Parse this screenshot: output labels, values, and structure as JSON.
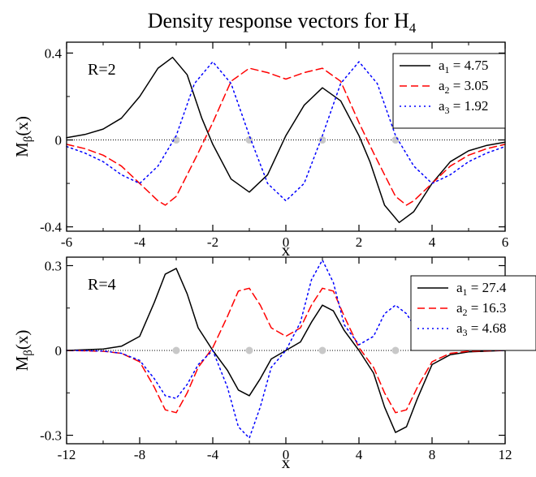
{
  "chart_data": {
    "title": "Density response vectors for H",
    "title_subscript": "4",
    "panels": [
      {
        "type": "line",
        "label": "R=2",
        "xlabel": "x",
        "ylabel": "M_β(x)",
        "ylabel_main": "M",
        "ylabel_sub": "β",
        "ylabel_tail": "(x)",
        "xlim": [
          -6,
          6
        ],
        "ylim": [
          -0.42,
          0.45
        ],
        "xticks": [
          -6,
          -4,
          -2,
          0,
          2,
          4,
          6
        ],
        "xtick_labels": [
          "-6",
          "-4",
          "-2",
          "0",
          "2",
          "4",
          "6"
        ],
        "yticks": [
          -0.4,
          0,
          0.4
        ],
        "ytick_labels": [
          "-0.4",
          "0",
          "0.4"
        ],
        "grid": false,
        "zero_line": true,
        "legend_position": "top-right",
        "atom_positions": [
          -3,
          -1,
          1,
          3
        ],
        "series": [
          {
            "legend_var": "a",
            "legend_sub": "1",
            "legend_value": "4.75",
            "color": "#000000",
            "style": "solid",
            "x": [
              -6,
              -5.5,
              -5,
              -4.5,
              -4,
              -3.5,
              -3.1,
              -2.7,
              -2.3,
              -2,
              -1.5,
              -1,
              -0.5,
              0,
              0.5,
              1,
              1.5,
              2,
              2.3,
              2.7,
              3.1,
              3.5,
              4,
              4.5,
              5,
              5.5,
              6
            ],
            "y": [
              0.01,
              0.025,
              0.05,
              0.1,
              0.2,
              0.33,
              0.38,
              0.3,
              0.1,
              -0.02,
              -0.18,
              -0.24,
              -0.16,
              0.02,
              0.16,
              0.24,
              0.18,
              0.02,
              -0.1,
              -0.3,
              -0.38,
              -0.33,
              -0.2,
              -0.1,
              -0.05,
              -0.025,
              -0.01
            ]
          },
          {
            "legend_var": "a",
            "legend_sub": "2",
            "legend_value": "3.05",
            "color": "#ff0000",
            "style": "dashed",
            "x": [
              -6,
              -5.5,
              -5,
              -4.5,
              -4,
              -3.5,
              -3.3,
              -3,
              -2.7,
              -2.4,
              -2,
              -1.5,
              -1,
              -0.5,
              0,
              0.5,
              1,
              1.5,
              2,
              2.4,
              2.7,
              3,
              3.3,
              3.5,
              4,
              4.5,
              5,
              5.5,
              6
            ],
            "y": [
              -0.02,
              -0.04,
              -0.07,
              -0.12,
              -0.2,
              -0.28,
              -0.3,
              -0.26,
              -0.16,
              -0.06,
              0.08,
              0.27,
              0.33,
              0.31,
              0.28,
              0.31,
              0.33,
              0.27,
              0.08,
              -0.06,
              -0.16,
              -0.26,
              -0.3,
              -0.28,
              -0.2,
              -0.12,
              -0.07,
              -0.04,
              -0.02
            ]
          },
          {
            "legend_var": "a",
            "legend_sub": "3",
            "legend_value": "1.92",
            "color": "#0000ff",
            "style": "dotted",
            "x": [
              -6,
              -5.5,
              -5,
              -4.5,
              -4,
              -3.5,
              -3,
              -2.5,
              -2,
              -1.5,
              -1,
              -0.5,
              0,
              0.5,
              1,
              1.5,
              2,
              2.5,
              3,
              3.5,
              4,
              4.5,
              5,
              5.5,
              6
            ],
            "y": [
              -0.03,
              -0.06,
              -0.1,
              -0.16,
              -0.2,
              -0.12,
              0.02,
              0.26,
              0.36,
              0.26,
              0.02,
              -0.2,
              -0.28,
              -0.2,
              0.02,
              0.26,
              0.36,
              0.26,
              0.02,
              -0.12,
              -0.2,
              -0.16,
              -0.1,
              -0.06,
              -0.03
            ]
          }
        ]
      },
      {
        "type": "line",
        "label": "R=4",
        "xlabel": "x",
        "ylabel": "M_β(x)",
        "ylabel_main": "M",
        "ylabel_sub": "β",
        "ylabel_tail": "(x)",
        "xlim": [
          -12,
          12
        ],
        "ylim": [
          -0.33,
          0.33
        ],
        "xticks": [
          -12,
          -8,
          -4,
          0,
          4,
          8,
          12
        ],
        "xtick_labels": [
          "-12",
          "-8",
          "-4",
          "0",
          "4",
          "8",
          "12"
        ],
        "yticks": [
          -0.3,
          0,
          0.3
        ],
        "ytick_labels": [
          "-0.3",
          "0",
          "0.3"
        ],
        "grid": false,
        "zero_line": true,
        "legend_position": "top-right",
        "atom_positions": [
          -6,
          -2,
          2,
          6
        ],
        "series": [
          {
            "legend_var": "a",
            "legend_sub": "1",
            "legend_value": "27.4",
            "color": "#000000",
            "style": "solid",
            "x": [
              -12,
              -10,
              -9,
              -8,
              -7.2,
              -6.6,
              -6,
              -5.4,
              -4.8,
              -4,
              -3.2,
              -2.6,
              -2,
              -1.4,
              -0.8,
              0,
              0.8,
              1.4,
              2,
              2.6,
              3.2,
              4,
              4.8,
              5.4,
              6,
              6.6,
              7.2,
              8,
              9,
              10,
              12
            ],
            "y": [
              0,
              0.005,
              0.015,
              0.05,
              0.17,
              0.27,
              0.29,
              0.2,
              0.08,
              0.0,
              -0.07,
              -0.14,
              -0.16,
              -0.1,
              -0.03,
              0.0,
              0.03,
              0.1,
              0.16,
              0.14,
              0.07,
              0.0,
              -0.08,
              -0.2,
              -0.29,
              -0.27,
              -0.17,
              -0.05,
              -0.015,
              -0.005,
              0
            ]
          },
          {
            "legend_var": "a",
            "legend_sub": "2",
            "legend_value": "16.3",
            "color": "#ff0000",
            "style": "dashed",
            "x": [
              -12,
              -10,
              -9,
              -8,
              -7.2,
              -6.6,
              -6,
              -5.4,
              -4.8,
              -4,
              -3.2,
              -2.6,
              -2,
              -1.4,
              -0.8,
              0,
              0.8,
              1.4,
              2,
              2.6,
              3.2,
              4,
              4.8,
              5.4,
              6,
              6.6,
              7.2,
              8,
              9,
              10,
              12
            ],
            "y": [
              0,
              -0.003,
              -0.01,
              -0.04,
              -0.13,
              -0.21,
              -0.22,
              -0.15,
              -0.06,
              0.01,
              0.12,
              0.21,
              0.22,
              0.16,
              0.08,
              0.05,
              0.08,
              0.16,
              0.22,
              0.21,
              0.12,
              0.01,
              -0.06,
              -0.15,
              -0.22,
              -0.21,
              -0.13,
              -0.04,
              -0.01,
              -0.003,
              0
            ]
          },
          {
            "legend_var": "a",
            "legend_sub": "3",
            "legend_value": "4.68",
            "color": "#0000ff",
            "style": "dotted",
            "x": [
              -12,
              -10,
              -9,
              -8,
              -7.2,
              -6.6,
              -6,
              -5.4,
              -4.8,
              -4,
              -3.2,
              -2.6,
              -2,
              -1.4,
              -0.8,
              0,
              0.8,
              1.4,
              2,
              2.6,
              3.2,
              4,
              4.8,
              5.4,
              6,
              6.6,
              7.2,
              8,
              9,
              10,
              12
            ],
            "y": [
              0,
              -0.002,
              -0.01,
              -0.035,
              -0.1,
              -0.16,
              -0.17,
              -0.12,
              -0.05,
              0.0,
              -0.13,
              -0.27,
              -0.31,
              -0.2,
              -0.06,
              0.0,
              0.1,
              0.25,
              0.32,
              0.24,
              0.09,
              0.02,
              0.05,
              0.13,
              0.16,
              0.13,
              0.07,
              0.02,
              0.005,
              0.001,
              0
            ]
          }
        ]
      }
    ]
  }
}
